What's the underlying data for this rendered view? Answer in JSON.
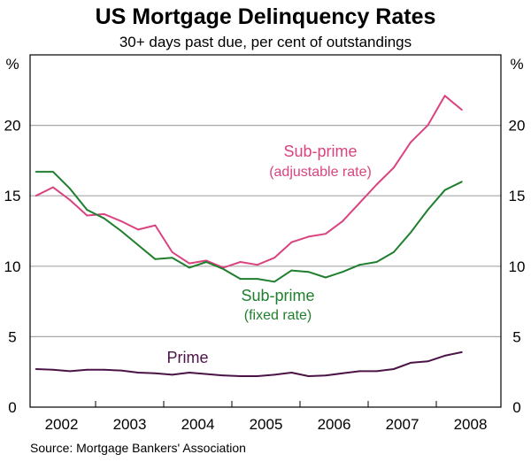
{
  "chart_data": {
    "type": "line",
    "title": "US Mortgage Delinquency Rates",
    "subtitle": "30+ days past due, per cent of outstandings",
    "ylabel_left": "%",
    "ylabel_right": "%",
    "ylim": [
      0,
      25
    ],
    "yticks": [
      0,
      5,
      10,
      15,
      20
    ],
    "xlim": [
      2002.0,
      2008.92
    ],
    "xtick_labels": [
      "2002",
      "2003",
      "2004",
      "2005",
      "2006",
      "2007",
      "2008"
    ],
    "grid": true,
    "x": [
      2002.125,
      2002.375,
      2002.625,
      2002.875,
      2003.125,
      2003.375,
      2003.625,
      2003.875,
      2004.125,
      2004.375,
      2004.625,
      2004.875,
      2005.125,
      2005.375,
      2005.625,
      2005.875,
      2006.125,
      2006.375,
      2006.625,
      2006.875,
      2007.125,
      2007.375,
      2007.625,
      2007.875,
      2008.125,
      2008.375
    ],
    "series": [
      {
        "name": "Sub-prime (adjustable rate)",
        "label_line1": "Sub-prime",
        "label_line2": "(adjustable rate)",
        "color": "#d9437f",
        "values": [
          15.0,
          15.6,
          14.7,
          13.6,
          13.7,
          13.2,
          12.6,
          12.9,
          11.0,
          10.2,
          10.4,
          9.9,
          10.3,
          10.1,
          10.6,
          11.7,
          12.1,
          12.3,
          13.2,
          14.5,
          15.8,
          17.0,
          18.8,
          20.0,
          22.1,
          21.1
        ]
      },
      {
        "name": "Sub-prime (fixed rate)",
        "label_line1": "Sub-prime",
        "label_line2": "(fixed rate)",
        "color": "#1f7f2e",
        "values": [
          16.7,
          16.7,
          15.5,
          14.0,
          13.4,
          12.5,
          11.5,
          10.5,
          10.6,
          9.9,
          10.3,
          9.8,
          9.1,
          9.1,
          8.9,
          9.7,
          9.6,
          9.2,
          9.6,
          10.1,
          10.3,
          11.0,
          12.4,
          14.0,
          15.4,
          16.0
        ]
      },
      {
        "name": "Prime",
        "label_line1": "Prime",
        "color": "#4b1346",
        "values": [
          2.7,
          2.65,
          2.55,
          2.65,
          2.65,
          2.6,
          2.45,
          2.4,
          2.3,
          2.45,
          2.35,
          2.25,
          2.2,
          2.2,
          2.3,
          2.45,
          2.2,
          2.25,
          2.4,
          2.55,
          2.55,
          2.7,
          3.15,
          3.25,
          3.65,
          3.9
        ]
      }
    ],
    "source": "Source: Mortgage Bankers' Association"
  }
}
